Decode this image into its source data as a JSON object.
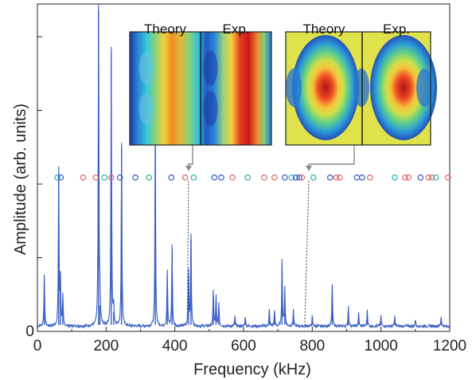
{
  "chart_data": {
    "type": "line",
    "xlabel": "Frequency (kHz)",
    "ylabel": "Amplitude (arb. units)",
    "xlim": [
      0,
      1200
    ],
    "ylim": [
      0,
      1.0
    ],
    "x_ticks": [
      0,
      200,
      400,
      600,
      800,
      1000,
      1200
    ],
    "y_tick_labels": [
      {
        "value": 0,
        "label": "0"
      }
    ],
    "grid": false,
    "line_color": "#3a5fc4",
    "peaks": [
      {
        "x": 20,
        "y": 0.16
      },
      {
        "x": 62,
        "y": 0.48
      },
      {
        "x": 67,
        "y": 0.14
      },
      {
        "x": 74,
        "y": 0.09
      },
      {
        "x": 178,
        "y": 0.98
      },
      {
        "x": 182,
        "y": 0.08
      },
      {
        "x": 215,
        "y": 0.85
      },
      {
        "x": 222,
        "y": 0.06
      },
      {
        "x": 245,
        "y": 0.56
      },
      {
        "x": 343,
        "y": 0.58
      },
      {
        "x": 378,
        "y": 0.17
      },
      {
        "x": 392,
        "y": 0.25
      },
      {
        "x": 440,
        "y": 0.17
      },
      {
        "x": 447,
        "y": 0.28
      },
      {
        "x": 512,
        "y": 0.11
      },
      {
        "x": 520,
        "y": 0.09
      },
      {
        "x": 528,
        "y": 0.07
      },
      {
        "x": 575,
        "y": 0.03
      },
      {
        "x": 605,
        "y": 0.03
      },
      {
        "x": 675,
        "y": 0.05
      },
      {
        "x": 690,
        "y": 0.05
      },
      {
        "x": 712,
        "y": 0.2
      },
      {
        "x": 720,
        "y": 0.12
      },
      {
        "x": 745,
        "y": 0.05
      },
      {
        "x": 800,
        "y": 0.03
      },
      {
        "x": 858,
        "y": 0.13
      },
      {
        "x": 905,
        "y": 0.06
      },
      {
        "x": 935,
        "y": 0.04
      },
      {
        "x": 960,
        "y": 0.05
      },
      {
        "x": 1000,
        "y": 0.03
      },
      {
        "x": 1040,
        "y": 0.03
      },
      {
        "x": 1100,
        "y": 0.02
      },
      {
        "x": 1175,
        "y": 0.03
      }
    ],
    "markers_y": 0.47,
    "markers": [
      {
        "x": 58,
        "color": "#2ab5b5"
      },
      {
        "x": 68,
        "color": "#3c5bc8"
      },
      {
        "x": 133,
        "color": "#e06a6a"
      },
      {
        "x": 170,
        "color": "#e06a6a"
      },
      {
        "x": 195,
        "color": "#2ab5b5"
      },
      {
        "x": 215,
        "color": "#e06a6a"
      },
      {
        "x": 240,
        "color": "#3c5bc8"
      },
      {
        "x": 285,
        "color": "#3c5bc8"
      },
      {
        "x": 325,
        "color": "#2ab5b5"
      },
      {
        "x": 390,
        "color": "#3c5bc8"
      },
      {
        "x": 430,
        "color": "#e06a6a"
      },
      {
        "x": 455,
        "color": "#2ab5b5"
      },
      {
        "x": 515,
        "color": "#3c5bc8"
      },
      {
        "x": 535,
        "color": "#3c5bc8"
      },
      {
        "x": 568,
        "color": "#e06a6a"
      },
      {
        "x": 612,
        "color": "#2ab5b5"
      },
      {
        "x": 660,
        "color": "#e06a6a"
      },
      {
        "x": 690,
        "color": "#e06a6a"
      },
      {
        "x": 720,
        "color": "#3c5bc8"
      },
      {
        "x": 740,
        "color": "#2ab5b5"
      },
      {
        "x": 752,
        "color": "#3c5bc8"
      },
      {
        "x": 762,
        "color": "#3c5bc8"
      },
      {
        "x": 770,
        "color": "#e06a6a"
      },
      {
        "x": 803,
        "color": "#2ab5b5"
      },
      {
        "x": 852,
        "color": "#3c5bc8"
      },
      {
        "x": 870,
        "color": "#e06a6a"
      },
      {
        "x": 880,
        "color": "#e06a6a"
      },
      {
        "x": 930,
        "color": "#3c5bc8"
      },
      {
        "x": 945,
        "color": "#3c5bc8"
      },
      {
        "x": 968,
        "color": "#e06a6a"
      },
      {
        "x": 1040,
        "color": "#2ab5b5"
      },
      {
        "x": 1070,
        "color": "#e06a6a"
      },
      {
        "x": 1080,
        "color": "#e06a6a"
      },
      {
        "x": 1115,
        "color": "#3c5bc8"
      },
      {
        "x": 1138,
        "color": "#e06a6a"
      },
      {
        "x": 1148,
        "color": "#e06a6a"
      },
      {
        "x": 1160,
        "color": "#2ab5b5"
      },
      {
        "x": 1195,
        "color": "#e06a6a"
      }
    ],
    "insets": [
      {
        "left_label": "Theory",
        "right_label": "Exp.",
        "pattern": "vertical-stripes",
        "frequency": 440
      },
      {
        "left_label": "Theory",
        "right_label": "Exp.",
        "pattern": "central-spot",
        "frequency": 790
      }
    ]
  }
}
